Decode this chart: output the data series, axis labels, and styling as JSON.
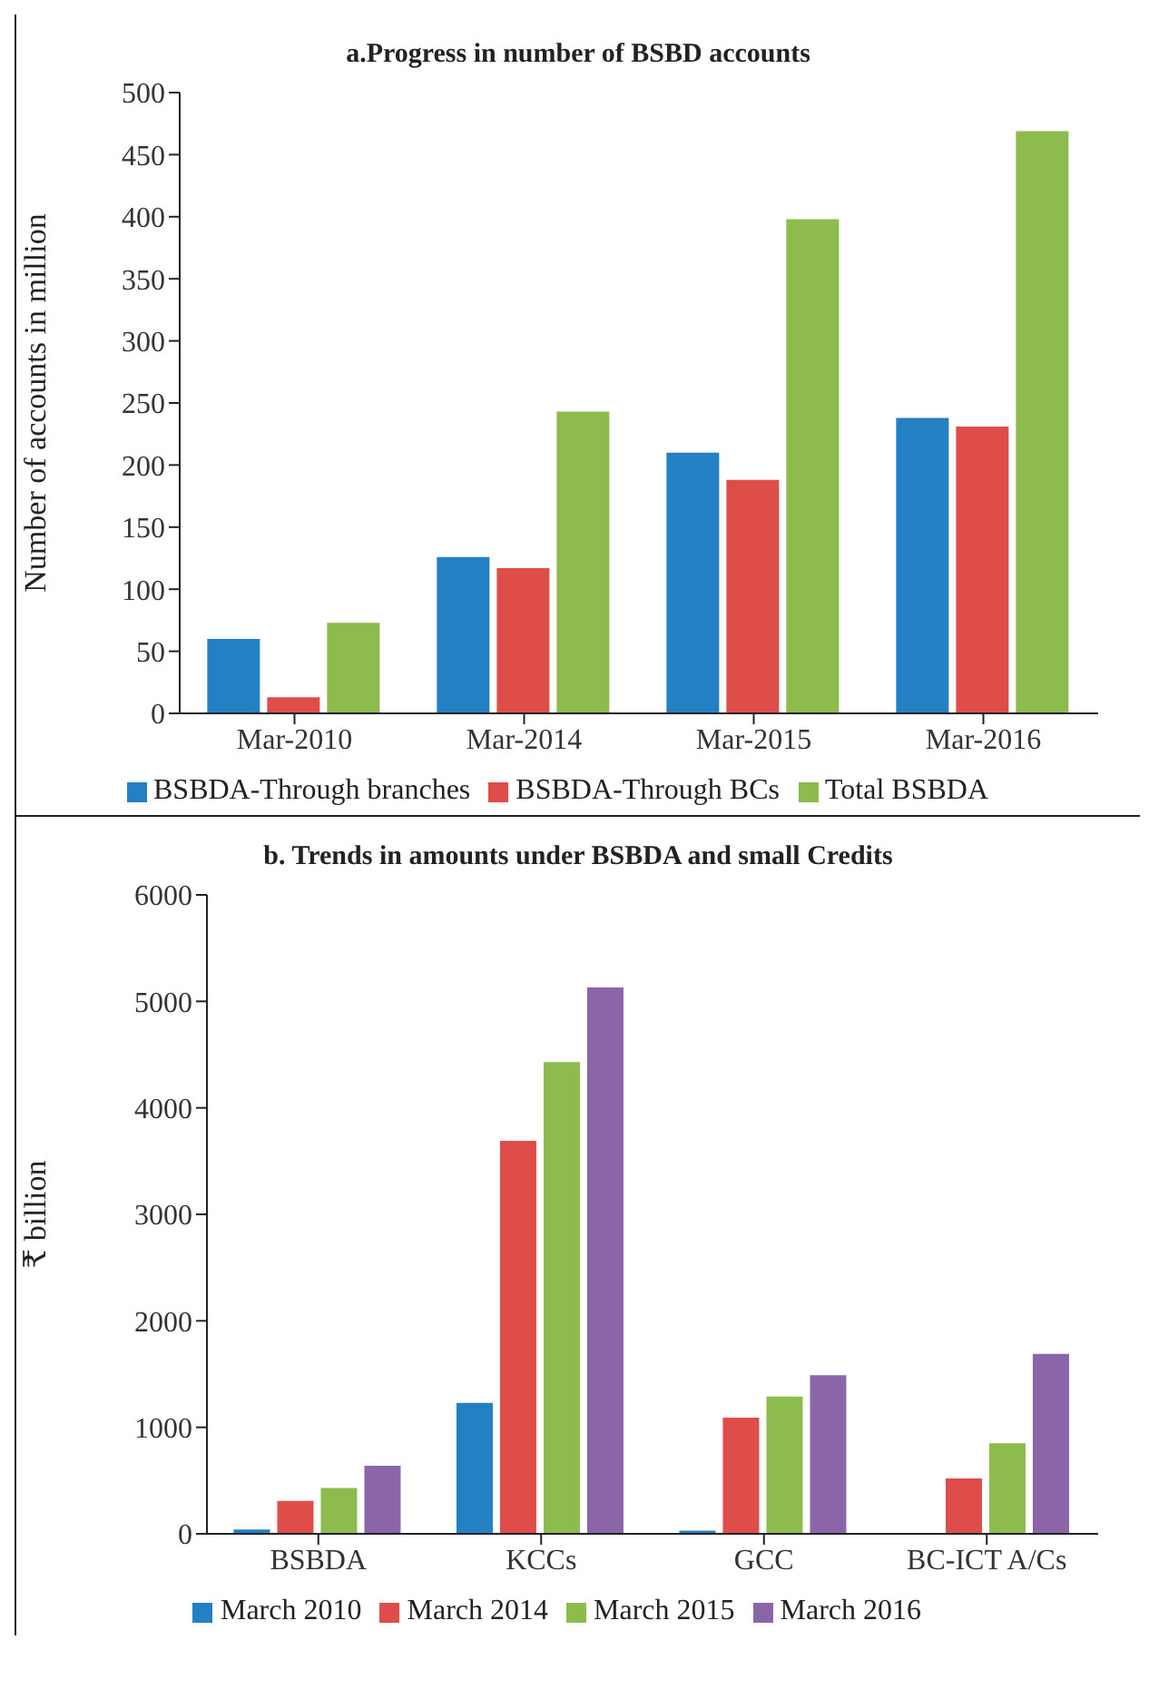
{
  "chart_data": [
    {
      "type": "bar",
      "title": "a.Progress in number of BSBD accounts",
      "ylabel": "Number of accounts in million",
      "categories": [
        "Mar-2010",
        "Mar-2014",
        "Mar-2015",
        "Mar-2016"
      ],
      "series": [
        {
          "name": "BSBDA-Through branches",
          "color": "#2280c3",
          "values": [
            60,
            126,
            210,
            238
          ]
        },
        {
          "name": "BSBDA-Through BCs",
          "color": "#de4d4a",
          "values": [
            13,
            117,
            188,
            231
          ]
        },
        {
          "name": "Total BSBDA",
          "color": "#8dbb4e",
          "values": [
            73,
            243,
            398,
            469
          ]
        }
      ],
      "ylim": [
        0,
        500
      ],
      "yticks": [
        0,
        50,
        100,
        150,
        200,
        250,
        300,
        350,
        400,
        450,
        500
      ],
      "grid": false,
      "legend": "bottom"
    },
    {
      "type": "bar",
      "title": "b. Trends in amounts under BSBDA and small Credits",
      "ylabel": "₹ billion",
      "categories": [
        "BSBDA",
        "KCCs",
        "GCC",
        "BC-ICT A/Cs"
      ],
      "series": [
        {
          "name": "March 2010",
          "color": "#2280c3",
          "values": [
            40,
            1230,
            30,
            null
          ]
        },
        {
          "name": "March 2014",
          "color": "#de4d4a",
          "values": [
            310,
            3690,
            1090,
            520
          ]
        },
        {
          "name": "March 2015",
          "color": "#8dbb4e",
          "values": [
            430,
            4430,
            1290,
            850
          ]
        },
        {
          "name": "March 2016",
          "color": "#8a66a8",
          "values": [
            640,
            5130,
            1490,
            1690
          ]
        }
      ],
      "ylim": [
        0,
        6000
      ],
      "yticks": [
        0,
        1000,
        2000,
        3000,
        4000,
        5000,
        6000
      ],
      "grid": false,
      "legend": "bottom"
    }
  ]
}
